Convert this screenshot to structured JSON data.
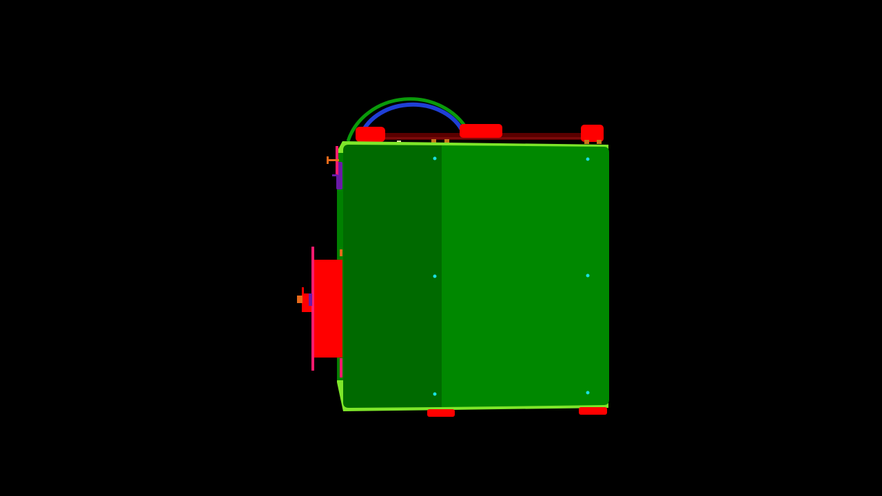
{
  "view": {
    "background": "#000000"
  },
  "model": {
    "colors": {
      "front_panel": "#008800",
      "front_panel_shade": "#006a00",
      "frame_edge": "#7ee62a",
      "frame_side": "#008000",
      "spool_arc_outer": "#0a9a0a",
      "spool_arc_inner": "#1f3fd6",
      "feet": "#ff0000",
      "top_rail": "#5a0000",
      "side_motor": "#ff0000",
      "side_plate": "#ff1a6e",
      "connector": "#e86a1a",
      "bracket": "#6a1aa8",
      "screw_dots": "#19e0e0",
      "top_bolts": "#c8761a"
    },
    "screws": 6
  }
}
